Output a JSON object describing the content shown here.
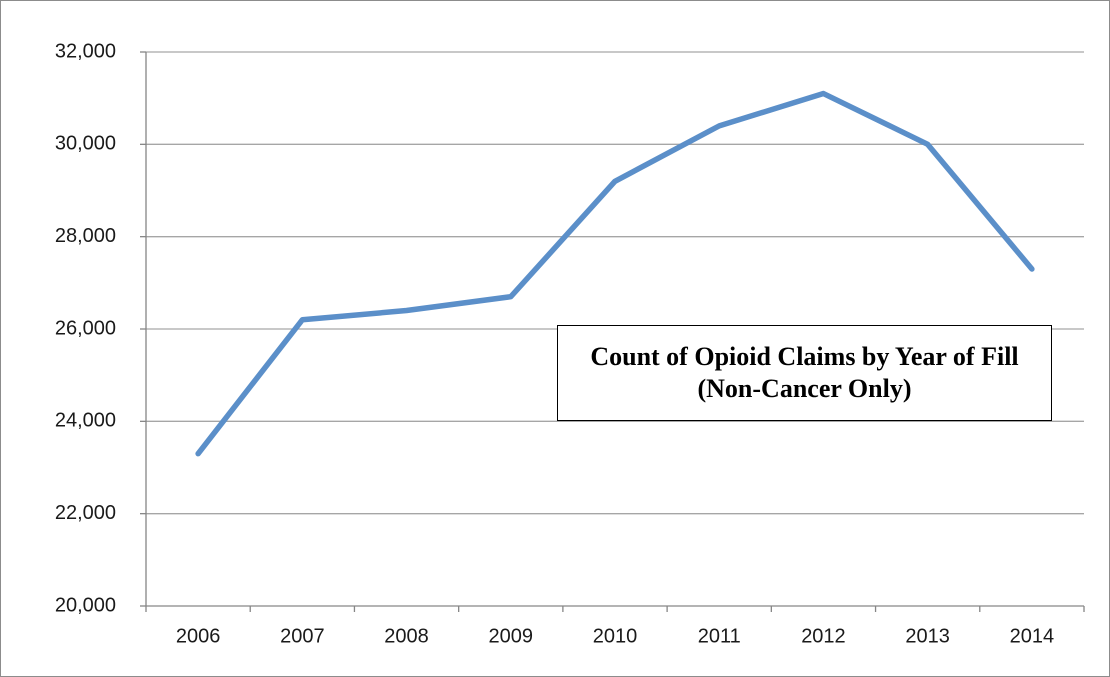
{
  "chart_data": {
    "type": "line",
    "title": "Count of Opioid Claims by Year of Fill (Non-Cancer Only)",
    "categories": [
      "2006",
      "2007",
      "2008",
      "2009",
      "2010",
      "2011",
      "2012",
      "2013",
      "2014"
    ],
    "values": [
      23300,
      26200,
      26400,
      26700,
      29200,
      30400,
      31100,
      30000,
      27300
    ],
    "color": "#5b8fc9",
    "ylim": [
      20000,
      32000
    ],
    "yticks": [
      {
        "value": 20000,
        "label": "20,000"
      },
      {
        "value": 22000,
        "label": "22,000"
      },
      {
        "value": 24000,
        "label": "24,000"
      },
      {
        "value": 26000,
        "label": "26,000"
      },
      {
        "value": 28000,
        "label": "28,000"
      },
      {
        "value": 30000,
        "label": "30,000"
      },
      {
        "value": 32000,
        "label": "32,000"
      }
    ],
    "grid": true
  }
}
